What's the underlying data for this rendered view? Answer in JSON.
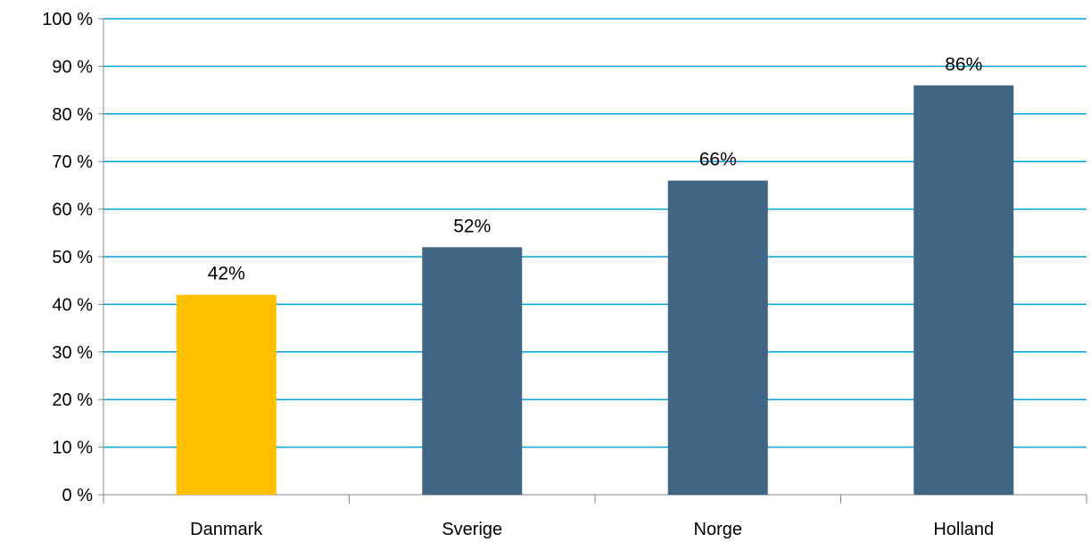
{
  "chart_data": {
    "type": "bar",
    "categories": [
      "Danmark",
      "Sverige",
      "Norge",
      "Holland"
    ],
    "values": [
      42,
      52,
      66,
      86
    ],
    "data_labels": [
      "42%",
      "52%",
      "66%",
      "86%"
    ],
    "ylim": [
      0,
      100
    ],
    "y_ticks": [
      0,
      10,
      20,
      30,
      40,
      50,
      60,
      70,
      80,
      90,
      100
    ],
    "y_tick_labels": [
      "0 %",
      "10 %",
      "20 %",
      "30 %",
      "40 %",
      "50 %",
      "60 %",
      "70 %",
      "80 %",
      "90 %",
      "100 %"
    ],
    "grid": true,
    "legend": "none",
    "title": "",
    "xlabel": "",
    "ylabel": "",
    "colors": {
      "highlight": "#FFC000",
      "bar": "#416584",
      "gridline": "#00A0DC",
      "axis": "#888888"
    },
    "bar_colors": [
      "#FFC000",
      "#416584",
      "#416584",
      "#416584"
    ]
  }
}
